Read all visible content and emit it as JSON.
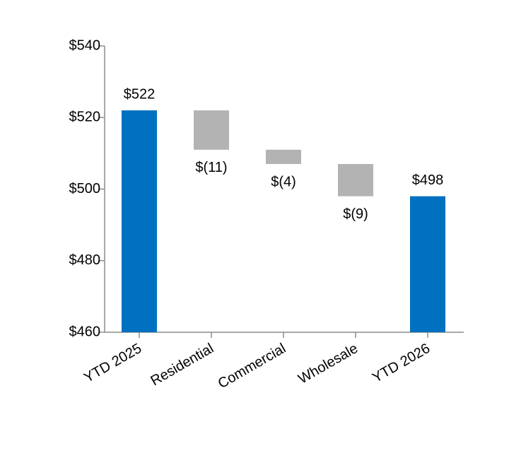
{
  "chart_data": {
    "type": "waterfall",
    "categories": [
      "YTD 2025",
      "Residential",
      "Commercial",
      "Wholesale",
      "YTD 2026"
    ],
    "values": [
      522,
      -11,
      -4,
      -9,
      498
    ],
    "value_labels": [
      "$522",
      "$(11)",
      "$(4)",
      "$(9)",
      "$498"
    ],
    "colors": [
      "#0070c0",
      "#b3b3b3",
      "#b3b3b3",
      "#b3b3b3",
      "#0070c0"
    ],
    "ylim": [
      460,
      540
    ],
    "yticks": [
      {
        "value": 460,
        "label": "$460"
      },
      {
        "value": 480,
        "label": "$480"
      },
      {
        "value": 500,
        "label": "$500"
      },
      {
        "value": 520,
        "label": "$520"
      },
      {
        "value": 540,
        "label": "$540"
      }
    ],
    "grid": false
  }
}
